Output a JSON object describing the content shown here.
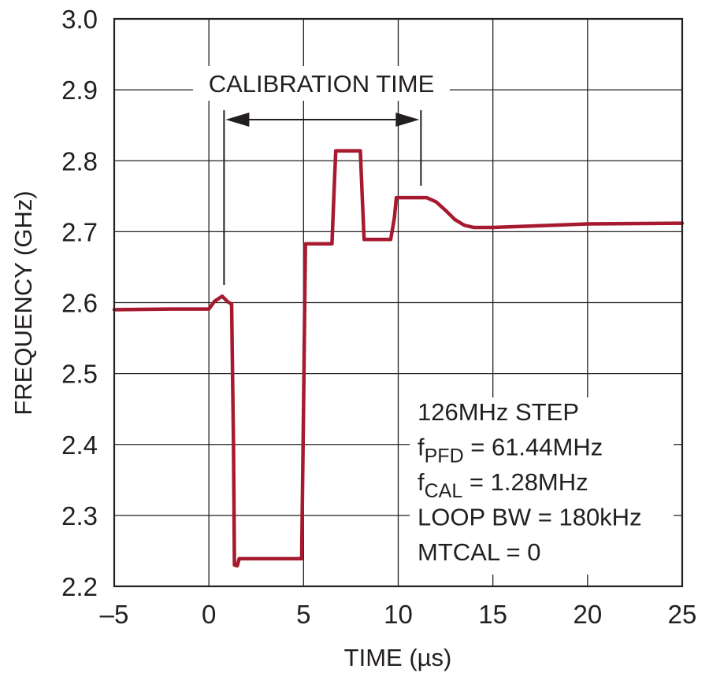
{
  "chart_data": {
    "type": "line",
    "title": "",
    "xlabel": "TIME (µs)",
    "ylabel": "FREQUENCY (GHz)",
    "xlim": [
      -5,
      25
    ],
    "ylim": [
      2.2,
      3.0
    ],
    "x_ticks": [
      -5,
      0,
      5,
      10,
      15,
      20,
      25
    ],
    "x_tick_labels": [
      "–5",
      "0",
      "5",
      "10",
      "15",
      "20",
      "25"
    ],
    "y_ticks": [
      2.2,
      2.3,
      2.4,
      2.5,
      2.6,
      2.7,
      2.8,
      2.9,
      3.0
    ],
    "y_tick_labels": [
      "2.2",
      "2.3",
      "2.4",
      "2.5",
      "2.6",
      "2.7",
      "2.8",
      "2.9",
      "3.0"
    ],
    "grid": true,
    "series": [
      {
        "color": "#a6192e",
        "points": [
          [
            -5,
            2.59
          ],
          [
            -2,
            2.591
          ],
          [
            0,
            2.591
          ],
          [
            0.3,
            2.602
          ],
          [
            0.7,
            2.609
          ],
          [
            1.0,
            2.601
          ],
          [
            1.2,
            2.598
          ],
          [
            1.3,
            2.4
          ],
          [
            1.35,
            2.23
          ],
          [
            1.5,
            2.229
          ],
          [
            1.6,
            2.239
          ],
          [
            4.9,
            2.239
          ],
          [
            5.0,
            2.45
          ],
          [
            5.1,
            2.683
          ],
          [
            6.5,
            2.683
          ],
          [
            6.6,
            2.75
          ],
          [
            6.7,
            2.814
          ],
          [
            8.0,
            2.814
          ],
          [
            8.1,
            2.75
          ],
          [
            8.2,
            2.689
          ],
          [
            9.6,
            2.689
          ],
          [
            9.8,
            2.72
          ],
          [
            9.9,
            2.748
          ],
          [
            11.5,
            2.748
          ],
          [
            12.0,
            2.742
          ],
          [
            12.5,
            2.73
          ],
          [
            13.0,
            2.717
          ],
          [
            13.5,
            2.709
          ],
          [
            14.0,
            2.706
          ],
          [
            15.0,
            2.706
          ],
          [
            17.0,
            2.708
          ],
          [
            20.0,
            2.711
          ],
          [
            25.0,
            2.712
          ]
        ]
      }
    ],
    "annotations": {
      "calibration_label": "CALIBRATION TIME",
      "calibration_start_x": 0.8,
      "calibration_end_x": 11.2,
      "conditions": [
        {
          "main": "126MHz STEP",
          "sub": "",
          "rest": ""
        },
        {
          "main": "f",
          "sub": "PFD",
          "rest": " = 61.44MHz"
        },
        {
          "main": "f",
          "sub": "CAL",
          "rest": " = 1.28MHz"
        },
        {
          "main": "LOOP BW = 180kHz",
          "sub": "",
          "rest": ""
        },
        {
          "main": "MTCAL = 0",
          "sub": "",
          "rest": ""
        }
      ]
    }
  }
}
